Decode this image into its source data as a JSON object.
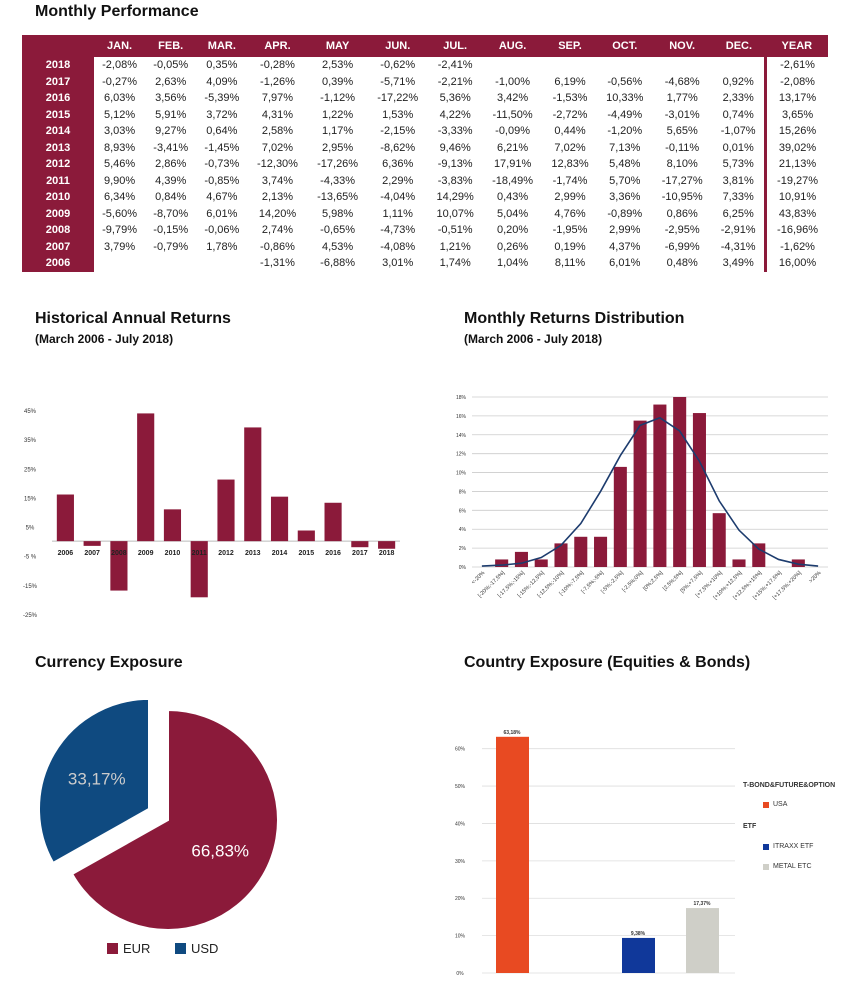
{
  "titles": {
    "monthly": "Monthly Performance",
    "historical": "Historical Annual Returns",
    "historical_sub": "(March 2006 - July 2018)",
    "distribution": "Monthly Returns Distribution",
    "distribution_sub": "(March 2006 - July 2018)",
    "currency": "Currency Exposure",
    "country": "Country Exposure (Equities & Bonds)"
  },
  "table": {
    "headers": [
      "",
      "JAN.",
      "FEB.",
      "MAR.",
      "APR.",
      "MAY",
      "JUN.",
      "JUL.",
      "AUG.",
      "SEP.",
      "OCT.",
      "NOV.",
      "DEC.",
      "YEAR"
    ],
    "rows": [
      {
        "year": "2018",
        "values": [
          "-2,08%",
          "-0,05%",
          "0,35%",
          "-0,28%",
          "2,53%",
          "-0,62%",
          "-2,41%",
          "",
          "",
          "",
          "",
          "",
          "-2,61%"
        ]
      },
      {
        "year": "2017",
        "values": [
          "-0,27%",
          "2,63%",
          "4,09%",
          "-1,26%",
          "0,39%",
          "-5,71%",
          "-2,21%",
          "-1,00%",
          "6,19%",
          "-0,56%",
          "-4,68%",
          "0,92%",
          "-2,08%"
        ]
      },
      {
        "year": "2016",
        "values": [
          "6,03%",
          "3,56%",
          "-5,39%",
          "7,97%",
          "-1,12%",
          "-17,22%",
          "5,36%",
          "3,42%",
          "-1,53%",
          "10,33%",
          "1,77%",
          "2,33%",
          "13,17%"
        ]
      },
      {
        "year": "2015",
        "values": [
          "5,12%",
          "5,91%",
          "3,72%",
          "4,31%",
          "1,22%",
          "1,53%",
          "4,22%",
          "-11,50%",
          "-2,72%",
          "-4,49%",
          "-3,01%",
          "0,74%",
          "3,65%"
        ]
      },
      {
        "year": "2014",
        "values": [
          "3,03%",
          "9,27%",
          "0,64%",
          "2,58%",
          "1,17%",
          "-2,15%",
          "-3,33%",
          "-0,09%",
          "0,44%",
          "-1,20%",
          "5,65%",
          "-1,07%",
          "15,26%"
        ]
      },
      {
        "year": "2013",
        "values": [
          "8,93%",
          "-3,41%",
          "-1,45%",
          "7,02%",
          "2,95%",
          "-8,62%",
          "9,46%",
          "6,21%",
          "7,02%",
          "7,13%",
          "-0,11%",
          "0,01%",
          "39,02%"
        ]
      },
      {
        "year": "2012",
        "values": [
          "5,46%",
          "2,86%",
          "-0,73%",
          "-12,30%",
          "-17,26%",
          "6,36%",
          "-9,13%",
          "17,91%",
          "12,83%",
          "5,48%",
          "8,10%",
          "5,73%",
          "21,13%"
        ]
      },
      {
        "year": "2011",
        "values": [
          "9,90%",
          "4,39%",
          "-0,85%",
          "3,74%",
          "-4,33%",
          "2,29%",
          "-3,83%",
          "-18,49%",
          "-1,74%",
          "5,70%",
          "-17,27%",
          "3,81%",
          "-19,27%"
        ]
      },
      {
        "year": "2010",
        "values": [
          "6,34%",
          "0,84%",
          "4,67%",
          "2,13%",
          "-13,65%",
          "-4,04%",
          "14,29%",
          "0,43%",
          "2,99%",
          "3,36%",
          "-10,95%",
          "7,33%",
          "10,91%"
        ]
      },
      {
        "year": "2009",
        "values": [
          "-5,60%",
          "-8,70%",
          "6,01%",
          "14,20%",
          "5,98%",
          "1,11%",
          "10,07%",
          "5,04%",
          "4,76%",
          "-0,89%",
          "0,86%",
          "6,25%",
          "43,83%"
        ]
      },
      {
        "year": "2008",
        "values": [
          "-9,79%",
          "-0,15%",
          "-0,06%",
          "2,74%",
          "-0,65%",
          "-4,73%",
          "-0,51%",
          "0,20%",
          "-1,95%",
          "2,99%",
          "-2,95%",
          "-2,91%",
          "-16,96%"
        ]
      },
      {
        "year": "2007",
        "values": [
          "3,79%",
          "-0,79%",
          "1,78%",
          "-0,86%",
          "4,53%",
          "-4,08%",
          "1,21%",
          "0,26%",
          "0,19%",
          "4,37%",
          "-6,99%",
          "-4,31%",
          "-1,62%"
        ]
      },
      {
        "year": "2006",
        "values": [
          "",
          "",
          "",
          "-1,31%",
          "-6,88%",
          "3,01%",
          "1,74%",
          "1,04%",
          "8,11%",
          "6,01%",
          "0,48%",
          "3,49%",
          "16,00%"
        ]
      }
    ]
  },
  "colors": {
    "maroon": "#8b1a3a",
    "blue": "#0f4a80",
    "orange": "#e84a22",
    "navy": "#10389a",
    "grey": "#cfcfc8",
    "curve": "#1d3c6e"
  },
  "chart_data": [
    {
      "type": "bar",
      "title": "Historical Annual Returns",
      "categories": [
        "2006",
        "2007",
        "2008",
        "2009",
        "2010",
        "2011",
        "2012",
        "2013",
        "2014",
        "2015",
        "2016",
        "2017",
        "2018"
      ],
      "values": [
        16.0,
        -1.62,
        -16.96,
        43.83,
        10.91,
        -19.27,
        21.13,
        39.02,
        15.26,
        3.65,
        13.17,
        -2.08,
        -2.61
      ],
      "yticks": [
        "45%",
        "35%",
        "25%",
        "15%",
        "5%",
        "-5 %",
        "-15%",
        "-25%"
      ],
      "ytick_values": [
        45,
        35,
        25,
        15,
        5,
        -5,
        -15,
        -25
      ],
      "ylim": [
        -25,
        45
      ],
      "grid": false
    },
    {
      "type": "bar",
      "title": "Monthly Returns Distribution",
      "categories": [
        "<-20%",
        "[-20%;-17,5%]",
        "[-17,5%;-15%]",
        "[-15%;-12,5%]",
        "[-12,5%;-10%]",
        "[-10%;-7,5%]",
        "[-7,5%;-5%]",
        "[-5%;-2,5%]",
        "[-2,5%;0%]",
        "[0%;2,5%]",
        "[2,5%;5%]",
        "[5%;+7,5%]",
        "[+7,5%;+10%]",
        "[+10%;+12,5%]",
        "[+12,5%;+15%]",
        "[+15%;+17,5%]",
        "[+17,5%;+20%]",
        ">20%"
      ],
      "values": [
        0,
        0.8,
        1.6,
        0.8,
        2.5,
        3.2,
        3.2,
        10.6,
        15.5,
        17.2,
        18.0,
        16.3,
        5.7,
        0.8,
        2.5,
        0,
        0.8,
        0
      ],
      "curve": [
        0.1,
        0.2,
        0.4,
        1.0,
        2.3,
        4.6,
        8.0,
        11.8,
        15.0,
        15.8,
        14.4,
        11.2,
        7.0,
        3.9,
        1.9,
        0.8,
        0.3,
        0.1
      ],
      "yticks": [
        "0%",
        "2%",
        "4%",
        "6%",
        "8%",
        "10%",
        "12%",
        "14%",
        "16%",
        "18%"
      ],
      "ytick_values": [
        0,
        2,
        4,
        6,
        8,
        10,
        12,
        14,
        16,
        18
      ],
      "ylim": [
        0,
        18
      ],
      "grid": true
    },
    {
      "type": "pie",
      "title": "Currency Exposure",
      "labels": [
        "EUR",
        "USD"
      ],
      "values": [
        66.83,
        33.17
      ],
      "data_labels": [
        "66,83%",
        "33,17%"
      ],
      "legend": "bottom"
    },
    {
      "type": "bar",
      "title": "Country Exposure (Equities & Bonds)",
      "categories": [
        "USA",
        "ITRAXX ETF",
        "METAL ETC"
      ],
      "values": [
        63.18,
        9.38,
        17.37
      ],
      "data_labels": [
        "63,18%",
        "9,38%",
        "17,37%"
      ],
      "groups": [
        "T-BOND&FUTURE&OPTION",
        "ETF"
      ],
      "yticks": [
        "0%",
        "10%",
        "20%",
        "30%",
        "40%",
        "50%",
        "60%"
      ],
      "ytick_values": [
        0,
        10,
        20,
        30,
        40,
        50,
        60
      ],
      "ylim": [
        0,
        65
      ],
      "grid": true,
      "legend": "right"
    }
  ]
}
